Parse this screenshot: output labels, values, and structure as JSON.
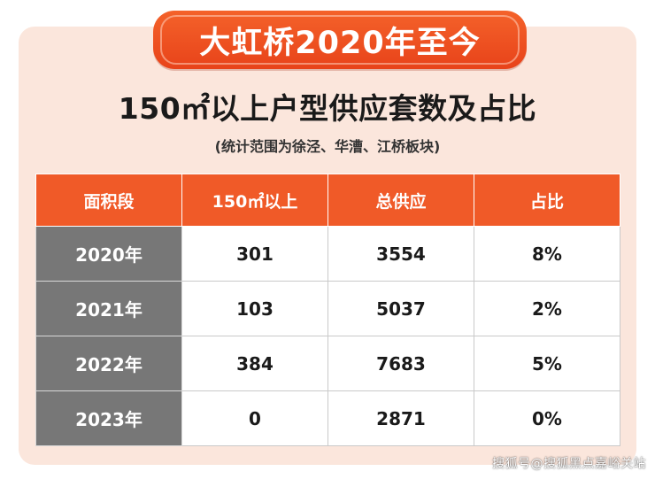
{
  "banner": {
    "text": "大虹桥2020年至今"
  },
  "chart_data": {
    "type": "table",
    "title": "150㎡以上户型供应套数及占比",
    "subtitle": "(统计范围为徐泾、华漕、江桥板块)",
    "columns": [
      "面积段",
      "150㎡以上",
      "总供应",
      "占比"
    ],
    "rows": [
      {
        "year": "2020年",
        "above150": "301",
        "total": "3554",
        "ratio": "8%"
      },
      {
        "year": "2021年",
        "above150": "103",
        "total": "5037",
        "ratio": "2%"
      },
      {
        "year": "2022年",
        "above150": "384",
        "total": "7683",
        "ratio": "5%"
      },
      {
        "year": "2023年",
        "above150": "0",
        "total": "2871",
        "ratio": "0%"
      }
    ]
  },
  "watermark": "搜狐号@搜狐黑点嘉峪关站",
  "colors": {
    "accent": "#f05a28",
    "background_card": "#fbe6dc",
    "year_cell": "#777777"
  }
}
